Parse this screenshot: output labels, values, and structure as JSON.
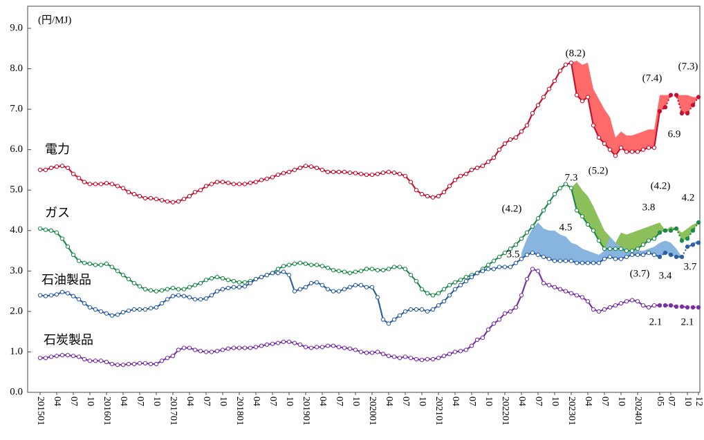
{
  "chart_data": {
    "type": "line",
    "unit": "(円/MJ)",
    "categories": [
      "201501",
      null,
      null,
      "04",
      null,
      null,
      "07",
      null,
      null,
      "10",
      null,
      null,
      "201601",
      null,
      null,
      "04",
      null,
      null,
      "07",
      null,
      null,
      "10",
      null,
      null,
      "201701",
      null,
      null,
      "04",
      null,
      null,
      "07",
      null,
      null,
      "10",
      null,
      null,
      "201801",
      null,
      null,
      "04",
      null,
      null,
      "07",
      null,
      null,
      "10",
      null,
      null,
      "201901",
      null,
      null,
      "04",
      null,
      null,
      "07",
      null,
      null,
      "10",
      null,
      null,
      "202001",
      null,
      null,
      "04",
      null,
      null,
      "07",
      null,
      null,
      "10",
      null,
      null,
      "202101",
      null,
      null,
      "04",
      null,
      null,
      "07",
      null,
      null,
      "10",
      null,
      null,
      "202201",
      null,
      null,
      "04",
      null,
      null,
      "07",
      null,
      null,
      "10",
      null,
      null,
      "202301",
      null,
      null,
      "04",
      null,
      null,
      "07",
      null,
      null,
      "10",
      null,
      null,
      "202401",
      null,
      null,
      null,
      "05",
      null,
      "07",
      null,
      null,
      "10",
      null,
      "12"
    ],
    "ylim": [
      0,
      9
    ],
    "yticks": [
      {
        "value": 0,
        "label": "0.0"
      },
      {
        "value": 1,
        "label": "1.0"
      },
      {
        "value": 2,
        "label": "2.0"
      },
      {
        "value": 3,
        "label": "3.0"
      },
      {
        "value": 4,
        "label": "4.0"
      },
      {
        "value": 5,
        "label": "5.0"
      },
      {
        "value": 6,
        "label": "6.0"
      },
      {
        "value": 7,
        "label": "7.0"
      },
      {
        "value": 8,
        "label": "8.0"
      },
      {
        "value": 9,
        "label": "9.0"
      }
    ],
    "forecast_from": 112,
    "series": [
      {
        "name": "電力",
        "color": "#c8102e",
        "band_color": "#ff6b6b",
        "values": [
          5.5,
          5.5,
          5.55,
          5.58,
          5.6,
          5.55,
          5.4,
          5.3,
          5.2,
          5.15,
          5.15,
          5.15,
          5.17,
          5.15,
          5.1,
          5.05,
          4.95,
          4.9,
          4.85,
          4.8,
          4.8,
          4.78,
          4.75,
          4.72,
          4.7,
          4.72,
          4.78,
          4.85,
          4.95,
          5.0,
          5.1,
          5.15,
          5.2,
          5.2,
          5.18,
          5.15,
          5.15,
          5.15,
          5.18,
          5.2,
          5.25,
          5.28,
          5.32,
          5.38,
          5.42,
          5.45,
          5.5,
          5.55,
          5.6,
          5.58,
          5.55,
          5.5,
          5.45,
          5.45,
          5.45,
          5.45,
          5.43,
          5.42,
          5.4,
          5.38,
          5.38,
          5.4,
          5.43,
          5.45,
          5.43,
          5.4,
          5.35,
          5.2,
          5.0,
          4.9,
          4.85,
          4.82,
          4.85,
          4.95,
          5.1,
          5.25,
          5.35,
          5.4,
          5.5,
          5.55,
          5.6,
          5.7,
          5.8,
          6.0,
          6.15,
          6.25,
          6.3,
          6.45,
          6.6,
          6.9,
          7.1,
          7.3,
          7.5,
          7.7,
          7.95,
          8.1,
          8.15,
          7.35,
          7.2,
          7.3,
          6.6,
          6.3,
          6.15,
          6.0,
          5.85,
          6.05,
          5.95,
          5.95,
          5.95,
          6.0,
          6.05,
          6.05,
          6.95,
          7.05,
          7.35,
          7.35,
          6.9,
          6.9,
          7.1,
          7.3
        ],
        "band": [
          null,
          null,
          null,
          null,
          null,
          null,
          null,
          null,
          null,
          null,
          null,
          null,
          null,
          null,
          null,
          null,
          null,
          null,
          null,
          null,
          null,
          null,
          null,
          null,
          null,
          null,
          null,
          null,
          null,
          null,
          null,
          null,
          null,
          null,
          null,
          null,
          null,
          null,
          null,
          null,
          null,
          null,
          null,
          null,
          null,
          null,
          null,
          null,
          null,
          null,
          null,
          null,
          null,
          null,
          null,
          null,
          null,
          null,
          null,
          null,
          null,
          null,
          null,
          null,
          null,
          null,
          null,
          null,
          null,
          null,
          null,
          null,
          null,
          null,
          null,
          null,
          null,
          null,
          null,
          null,
          null,
          null,
          null,
          null,
          null,
          null,
          null,
          null,
          null,
          null,
          null,
          null,
          null,
          null,
          null,
          null,
          8.15,
          8.2,
          8.1,
          8.15,
          7.5,
          7.25,
          7.0,
          6.8,
          6.3,
          6.45,
          6.35,
          6.35,
          6.4,
          6.45,
          6.5,
          6.5,
          7.35,
          7.35,
          7.35,
          7.35,
          7.35,
          7.35,
          7.3,
          7.3
        ]
      },
      {
        "name": "ガス",
        "color": "#1e8a4a",
        "band_color": "#8dc05a",
        "values": [
          4.05,
          4.02,
          4.0,
          3.95,
          3.8,
          3.6,
          3.4,
          3.25,
          3.2,
          3.18,
          3.15,
          3.15,
          3.18,
          3.1,
          3.0,
          2.9,
          2.8,
          2.7,
          2.62,
          2.55,
          2.52,
          2.5,
          2.52,
          2.55,
          2.58,
          2.55,
          2.55,
          2.6,
          2.65,
          2.7,
          2.78,
          2.82,
          2.85,
          2.82,
          2.78,
          2.75,
          2.72,
          2.72,
          2.75,
          2.8,
          2.85,
          2.9,
          2.95,
          3.05,
          3.12,
          3.15,
          3.18,
          3.2,
          3.18,
          3.15,
          3.15,
          3.12,
          3.08,
          3.02,
          3.0,
          2.98,
          2.95,
          2.98,
          3.0,
          3.05,
          3.05,
          3.02,
          3.02,
          3.05,
          3.1,
          3.1,
          3.05,
          2.9,
          2.75,
          2.55,
          2.45,
          2.4,
          2.45,
          2.55,
          2.65,
          2.72,
          2.78,
          2.85,
          2.9,
          2.95,
          3.05,
          3.15,
          3.25,
          3.35,
          3.45,
          3.55,
          3.65,
          3.8,
          3.95,
          4.1,
          4.3,
          4.5,
          4.7,
          4.9,
          5.05,
          5.15,
          5.05,
          4.5,
          4.35,
          4.15,
          4.0,
          3.75,
          3.55,
          3.55,
          3.55,
          3.55,
          3.5,
          3.5,
          3.55,
          3.65,
          3.75,
          3.8,
          3.95,
          4.0,
          4.0,
          4.05,
          3.75,
          3.8,
          4.0,
          4.2
        ],
        "band": [
          null,
          null,
          null,
          null,
          null,
          null,
          null,
          null,
          null,
          null,
          null,
          null,
          null,
          null,
          null,
          null,
          null,
          null,
          null,
          null,
          null,
          null,
          null,
          null,
          null,
          null,
          null,
          null,
          null,
          null,
          null,
          null,
          null,
          null,
          null,
          null,
          null,
          null,
          null,
          null,
          null,
          null,
          null,
          null,
          null,
          null,
          null,
          null,
          null,
          null,
          null,
          null,
          null,
          null,
          null,
          null,
          null,
          null,
          null,
          null,
          null,
          null,
          null,
          null,
          null,
          null,
          null,
          null,
          null,
          null,
          null,
          null,
          null,
          null,
          null,
          null,
          null,
          null,
          null,
          null,
          null,
          null,
          null,
          null,
          null,
          null,
          null,
          null,
          null,
          null,
          null,
          null,
          null,
          null,
          null,
          null,
          5.05,
          5.2,
          5.0,
          4.85,
          4.6,
          4.3,
          4.0,
          3.85,
          3.7,
          3.95,
          3.9,
          3.95,
          4.0,
          4.05,
          4.1,
          4.15,
          4.2,
          4.0,
          4.1,
          4.05,
          3.95,
          4.05,
          4.15,
          4.2
        ]
      },
      {
        "name": "石油製品",
        "color": "#2e5fa3",
        "band_color": "#88b4e0",
        "values": [
          2.4,
          2.38,
          2.4,
          2.42,
          2.48,
          2.45,
          2.38,
          2.3,
          2.2,
          2.1,
          2.05,
          2.0,
          1.95,
          1.9,
          1.92,
          1.98,
          2.02,
          2.05,
          2.05,
          2.05,
          2.08,
          2.1,
          2.2,
          2.3,
          2.38,
          2.4,
          2.38,
          2.35,
          2.3,
          2.3,
          2.32,
          2.4,
          2.5,
          2.55,
          2.58,
          2.6,
          2.6,
          2.62,
          2.7,
          2.8,
          2.85,
          2.9,
          2.95,
          2.95,
          2.98,
          2.9,
          2.5,
          2.55,
          2.6,
          2.7,
          2.72,
          2.65,
          2.55,
          2.5,
          2.5,
          2.55,
          2.6,
          2.65,
          2.65,
          2.6,
          2.6,
          2.35,
          1.8,
          1.7,
          1.8,
          1.9,
          2.0,
          2.05,
          2.05,
          2.05,
          2.0,
          2.05,
          2.15,
          2.25,
          2.4,
          2.55,
          2.65,
          2.75,
          2.85,
          2.95,
          3.0,
          3.05,
          3.05,
          3.1,
          3.1,
          3.1,
          3.2,
          3.3,
          3.4,
          3.45,
          3.4,
          3.35,
          3.3,
          3.25,
          3.25,
          3.25,
          3.25,
          3.2,
          3.2,
          3.2,
          3.2,
          3.2,
          3.3,
          3.35,
          3.3,
          3.3,
          3.35,
          3.4,
          3.4,
          3.4,
          3.45,
          3.4,
          3.35,
          3.45,
          3.4,
          3.35,
          3.35,
          3.6,
          3.65,
          3.7
        ],
        "band": [
          null,
          null,
          null,
          null,
          null,
          null,
          null,
          null,
          null,
          null,
          null,
          null,
          null,
          null,
          null,
          null,
          null,
          null,
          null,
          null,
          null,
          null,
          null,
          null,
          null,
          null,
          null,
          null,
          null,
          null,
          null,
          null,
          null,
          null,
          null,
          null,
          null,
          null,
          null,
          null,
          null,
          null,
          null,
          null,
          null,
          null,
          null,
          null,
          null,
          null,
          null,
          null,
          null,
          null,
          null,
          null,
          null,
          null,
          null,
          null,
          null,
          null,
          null,
          null,
          null,
          null,
          null,
          null,
          null,
          null,
          null,
          null,
          null,
          null,
          null,
          null,
          null,
          null,
          null,
          null,
          null,
          null,
          null,
          null,
          null,
          null,
          null,
          3.45,
          3.8,
          4.05,
          4.2,
          4.05,
          4.0,
          4.0,
          3.9,
          3.85,
          3.7,
          3.65,
          3.55,
          3.5,
          3.45,
          3.4,
          3.5,
          3.85,
          3.7,
          3.6,
          3.55,
          3.5,
          3.5,
          3.5,
          3.55,
          3.6,
          3.7,
          3.75,
          3.7,
          3.55,
          3.35,
          3.6,
          3.7,
          3.75
        ]
      },
      {
        "name": "石炭製品",
        "color": "#7a2fa8",
        "values": [
          0.85,
          0.85,
          0.88,
          0.9,
          0.92,
          0.92,
          0.9,
          0.88,
          0.82,
          0.78,
          0.78,
          0.78,
          0.75,
          0.7,
          0.68,
          0.68,
          0.7,
          0.7,
          0.72,
          0.72,
          0.7,
          0.7,
          0.78,
          0.85,
          0.9,
          1.05,
          1.1,
          1.1,
          1.05,
          1.02,
          1.0,
          1.0,
          1.02,
          1.05,
          1.08,
          1.1,
          1.1,
          1.1,
          1.1,
          1.12,
          1.15,
          1.18,
          1.2,
          1.22,
          1.25,
          1.25,
          1.22,
          1.18,
          1.12,
          1.1,
          1.12,
          1.12,
          1.15,
          1.15,
          1.12,
          1.1,
          1.08,
          1.05,
          1.0,
          0.98,
          0.98,
          1.0,
          0.95,
          0.9,
          0.88,
          0.85,
          0.88,
          0.85,
          0.82,
          0.8,
          0.82,
          0.82,
          0.85,
          0.9,
          0.95,
          1.0,
          1.02,
          1.05,
          1.15,
          1.3,
          1.35,
          1.55,
          1.7,
          1.8,
          1.95,
          2.0,
          2.1,
          2.4,
          2.8,
          3.05,
          3.0,
          2.7,
          2.65,
          2.6,
          2.55,
          2.5,
          2.45,
          2.4,
          2.35,
          2.25,
          2.05,
          2.0,
          2.05,
          2.1,
          2.15,
          2.2,
          2.25,
          2.28,
          2.25,
          2.15,
          2.1,
          2.15,
          2.15,
          2.15,
          2.15,
          2.12,
          2.12,
          2.1,
          2.1,
          2.1
        ]
      }
    ],
    "annotations": [
      {
        "text": "(8.2)",
        "series": 0
      },
      {
        "text": "7.3",
        "series": 0
      },
      {
        "text": "(7.4)",
        "series": 0
      },
      {
        "text": "6.9",
        "series": 0
      },
      {
        "text": "(7.3)",
        "series": 0
      },
      {
        "text": "(5.2)",
        "series": 1
      },
      {
        "text": "4.5",
        "series": 1
      },
      {
        "text": "(4.2)",
        "series": 1
      },
      {
        "text": "3.8",
        "series": 1
      },
      {
        "text": "4.2",
        "series": 1
      },
      {
        "text": "(4.2)",
        "series": 2
      },
      {
        "text": "3.5",
        "series": 2
      },
      {
        "text": "(3.7)",
        "series": 2
      },
      {
        "text": "3.4",
        "series": 2
      },
      {
        "text": "3.7",
        "series": 2
      },
      {
        "text": "2.1",
        "series": 3
      },
      {
        "text": "2.1",
        "series": 3
      }
    ]
  }
}
